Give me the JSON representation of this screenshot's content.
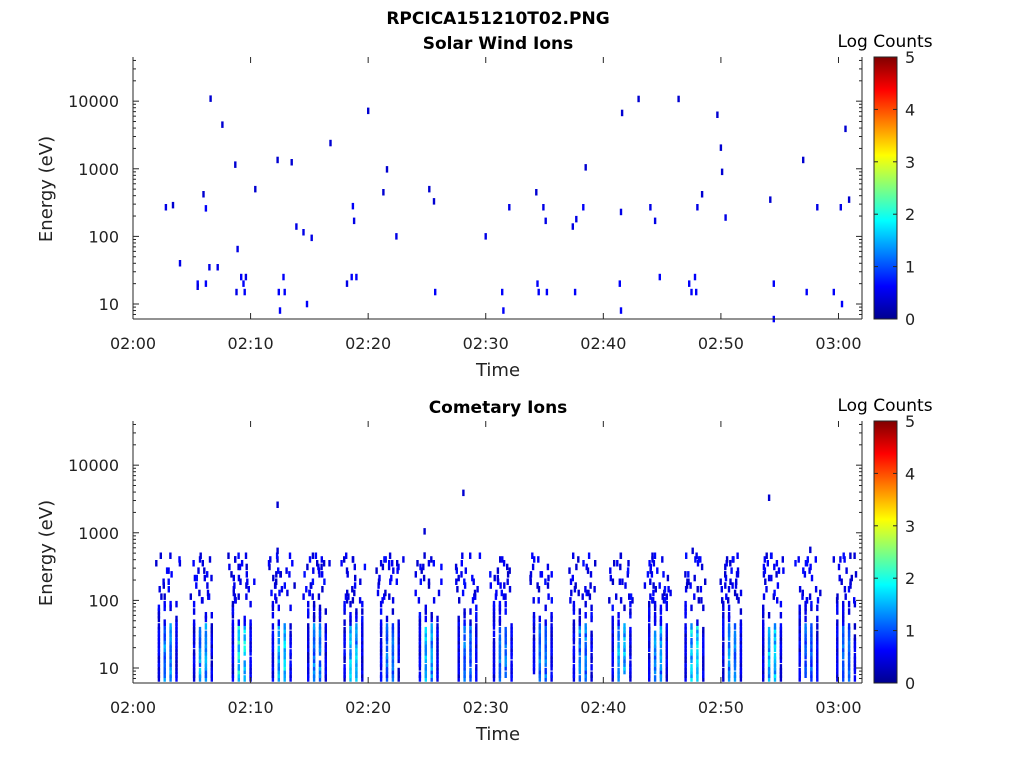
{
  "figure_title": "RPCICA151210T02.PNG",
  "chart_data": [
    {
      "type": "heatmap",
      "title": "Solar Wind Ions",
      "xlabel": "Time",
      "ylabel": "Energy (eV)",
      "x_ticks": [
        "02:00",
        "02:10",
        "02:20",
        "02:30",
        "02:40",
        "02:50",
        "03:00"
      ],
      "y_ticks": [
        "10",
        "100",
        "1000",
        "10000"
      ],
      "y_scale": "log",
      "xlim_minutes": [
        0,
        62
      ],
      "ylim": [
        6,
        45000
      ],
      "colorbar": {
        "label": "Log Counts",
        "ticks": [
          "0",
          "1",
          "2",
          "3",
          "4",
          "5"
        ],
        "range": [
          0,
          5
        ],
        "colormap": "jet"
      },
      "cells": [
        [
          2.8,
          270,
          0.5
        ],
        [
          3.4,
          290,
          0.4
        ],
        [
          4.0,
          40,
          0.5
        ],
        [
          5.5,
          20,
          0.6
        ],
        [
          5.5,
          18,
          0.5
        ],
        [
          6.0,
          420,
          0.4
        ],
        [
          6.2,
          260,
          0.6
        ],
        [
          6.2,
          20,
          0.6
        ],
        [
          6.5,
          35,
          0.5
        ],
        [
          6.6,
          10900,
          0.4
        ],
        [
          7.2,
          35,
          0.5
        ],
        [
          7.6,
          4500,
          0.4
        ],
        [
          8.7,
          1150,
          0.4
        ],
        [
          8.9,
          65,
          0.5
        ],
        [
          8.8,
          15,
          0.5
        ],
        [
          9.2,
          25,
          0.6
        ],
        [
          9.4,
          20,
          0.6
        ],
        [
          9.5,
          15,
          0.6
        ],
        [
          9.6,
          25,
          0.5
        ],
        [
          10.4,
          500,
          0.4
        ],
        [
          12.3,
          1350,
          0.4
        ],
        [
          12.4,
          15,
          0.6
        ],
        [
          12.5,
          8,
          0.6
        ],
        [
          12.8,
          25,
          0.6
        ],
        [
          12.9,
          15,
          0.6
        ],
        [
          13.5,
          1250,
          0.4
        ],
        [
          13.9,
          140,
          0.5
        ],
        [
          14.5,
          115,
          0.5
        ],
        [
          14.8,
          10,
          0.6
        ],
        [
          15.2,
          95,
          0.5
        ],
        [
          16.8,
          2400,
          0.4
        ],
        [
          18.2,
          20,
          0.5
        ],
        [
          18.6,
          25,
          0.6
        ],
        [
          18.7,
          280,
          0.6
        ],
        [
          18.8,
          170,
          0.5
        ],
        [
          19.0,
          25,
          0.6
        ],
        [
          20.0,
          7200,
          0.4
        ],
        [
          21.3,
          450,
          0.4
        ],
        [
          21.6,
          980,
          0.4
        ],
        [
          22.4,
          100,
          0.5
        ],
        [
          25.2,
          500,
          0.4
        ],
        [
          25.6,
          330,
          0.4
        ],
        [
          25.7,
          15,
          0.6
        ],
        [
          30.0,
          100,
          0.5
        ],
        [
          31.4,
          15,
          0.6
        ],
        [
          31.5,
          8,
          0.6
        ],
        [
          32.0,
          270,
          0.5
        ],
        [
          34.3,
          450,
          0.4
        ],
        [
          34.4,
          20,
          0.6
        ],
        [
          34.5,
          15,
          0.6
        ],
        [
          34.9,
          270,
          0.5
        ],
        [
          35.1,
          170,
          0.5
        ],
        [
          35.2,
          15,
          0.6
        ],
        [
          37.4,
          140,
          0.5
        ],
        [
          37.6,
          15,
          0.6
        ],
        [
          37.7,
          180,
          0.5
        ],
        [
          38.3,
          270,
          0.6
        ],
        [
          38.5,
          1050,
          0.4
        ],
        [
          41.4,
          20,
          0.6
        ],
        [
          41.5,
          8,
          0.6
        ],
        [
          41.5,
          230,
          0.5
        ],
        [
          41.6,
          6700,
          0.4
        ],
        [
          43.0,
          10800,
          0.4
        ],
        [
          44.0,
          270,
          0.5
        ],
        [
          44.4,
          170,
          0.5
        ],
        [
          44.8,
          25,
          0.6
        ],
        [
          46.4,
          10800,
          0.4
        ],
        [
          47.3,
          20,
          0.6
        ],
        [
          47.5,
          15,
          0.6
        ],
        [
          47.8,
          25,
          0.6
        ],
        [
          47.9,
          15,
          0.6
        ],
        [
          48.0,
          270,
          0.5
        ],
        [
          48.4,
          420,
          0.4
        ],
        [
          49.7,
          6300,
          0.4
        ],
        [
          50.0,
          2050,
          0.4
        ],
        [
          50.1,
          900,
          0.4
        ],
        [
          50.4,
          190,
          0.5
        ],
        [
          54.2,
          350,
          0.4
        ],
        [
          54.5,
          20,
          0.6
        ],
        [
          54.5,
          6,
          0.6
        ],
        [
          57.0,
          1350,
          0.4
        ],
        [
          57.3,
          15,
          0.6
        ],
        [
          58.2,
          270,
          0.5
        ],
        [
          59.6,
          15,
          0.6
        ],
        [
          60.2,
          270,
          0.5
        ],
        [
          60.3,
          10,
          0.6
        ],
        [
          60.6,
          3900,
          0.4
        ],
        [
          60.9,
          350,
          0.4
        ]
      ]
    },
    {
      "type": "heatmap",
      "title": "Cometary Ions",
      "xlabel": "Time",
      "ylabel": "Energy (eV)",
      "x_ticks": [
        "02:00",
        "02:10",
        "02:20",
        "02:30",
        "02:40",
        "02:50",
        "03:00"
      ],
      "y_ticks": [
        "10",
        "100",
        "1000",
        "10000"
      ],
      "y_scale": "log",
      "xlim_minutes": [
        0,
        62
      ],
      "ylim": [
        6,
        45000
      ],
      "colorbar": {
        "label": "Log Counts",
        "ticks": [
          "0",
          "1",
          "2",
          "3",
          "4",
          "5"
        ],
        "range": [
          0,
          5
        ],
        "colormap": "jet"
      },
      "bursts": [
        [
          2.7,
          0.9
        ],
        [
          5.7,
          1.1
        ],
        [
          9.0,
          1.6
        ],
        [
          12.4,
          1.4
        ],
        [
          15.4,
          0.9
        ],
        [
          18.5,
          1.3
        ],
        [
          21.6,
          0.8
        ],
        [
          24.9,
          1.2
        ],
        [
          28.2,
          0.7
        ],
        [
          31.2,
          0.8
        ],
        [
          34.6,
          0.8
        ],
        [
          38.0,
          1.0
        ],
        [
          41.3,
          1.2
        ],
        [
          44.4,
          1.1
        ],
        [
          47.5,
          1.5
        ],
        [
          50.7,
          1.0
        ],
        [
          54.1,
          1.3
        ],
        [
          57.2,
          0.6
        ],
        [
          60.4,
          0.8
        ]
      ],
      "isolated_points": [
        [
          12.3,
          2600,
          0.4
        ],
        [
          12.3,
          540,
          0.4
        ],
        [
          24.8,
          1050,
          0.4
        ],
        [
          24.8,
          460,
          0.4
        ],
        [
          28.1,
          3900,
          0.4
        ],
        [
          47.6,
          540,
          0.4
        ],
        [
          54.1,
          3300,
          0.4
        ],
        [
          57.6,
          560,
          0.4
        ]
      ]
    }
  ]
}
